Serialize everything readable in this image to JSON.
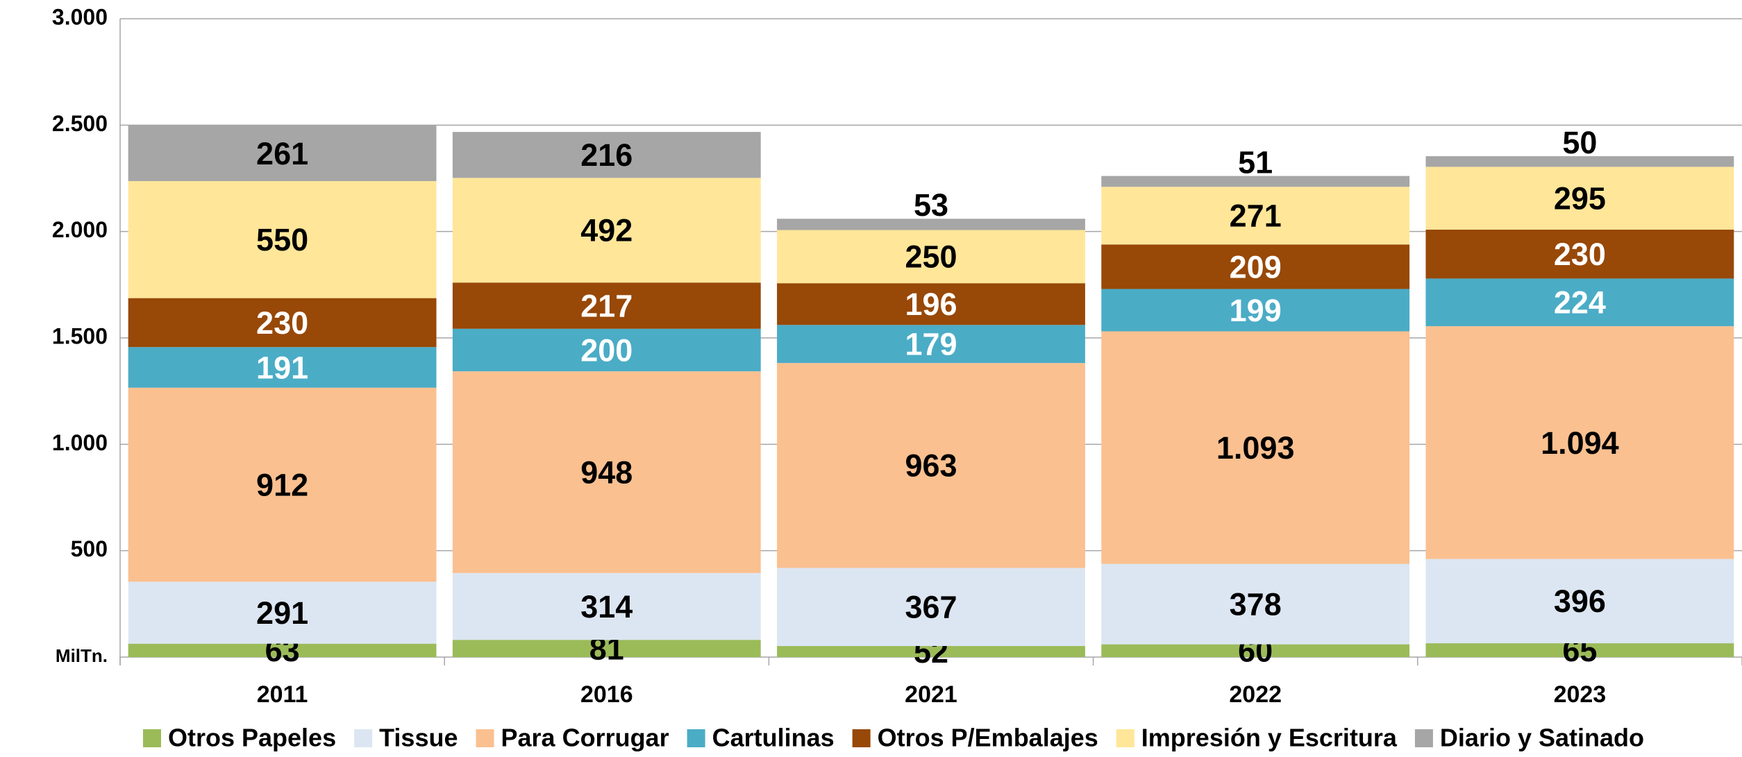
{
  "chart_data": {
    "type": "stacked_bar",
    "categories": [
      "2011",
      "2016",
      "2021",
      "2022",
      "2023"
    ],
    "series": [
      {
        "name": "Otros Papeles",
        "color": "#9bbb59",
        "label_color": "#000000",
        "values": [
          63,
          81,
          52,
          60,
          65
        ]
      },
      {
        "name": "Tissue",
        "color": "#dce6f2",
        "label_color": "#000000",
        "values": [
          291,
          314,
          367,
          378,
          396
        ]
      },
      {
        "name": "Para Corrugar",
        "color": "#fac090",
        "label_color": "#000000",
        "values": [
          912,
          948,
          963,
          1093,
          1094
        ],
        "value_labels": [
          "912",
          "948",
          "963",
          "1.093",
          "1.094"
        ]
      },
      {
        "name": "Cartulinas",
        "color": "#4bacc6",
        "label_color": "#ffffff",
        "values": [
          191,
          200,
          179,
          199,
          224
        ]
      },
      {
        "name": "Otros P/Embalajes",
        "color": "#984807",
        "label_color": "#ffffff",
        "values": [
          230,
          217,
          196,
          209,
          230
        ]
      },
      {
        "name": "Impresión y Escritura",
        "color": "#ffe699",
        "label_color": "#000000",
        "values": [
          550,
          492,
          250,
          271,
          295
        ]
      },
      {
        "name": "Diario y Satinado",
        "color": "#a6a6a6",
        "label_color": "#000000",
        "values": [
          261,
          216,
          53,
          51,
          50
        ]
      }
    ],
    "ylim": [
      0,
      3000
    ],
    "yticks": [
      {
        "value": 0,
        "label": "MilTn."
      },
      500,
      {
        "value": 1000,
        "label": "1.000"
      },
      {
        "value": 1500,
        "label": "1.500"
      },
      {
        "value": 2000,
        "label": "2.000"
      },
      {
        "value": 2500,
        "label": "2.500"
      },
      {
        "value": 3000,
        "label": "3.000"
      }
    ],
    "grid": true,
    "legend": "bottom"
  }
}
